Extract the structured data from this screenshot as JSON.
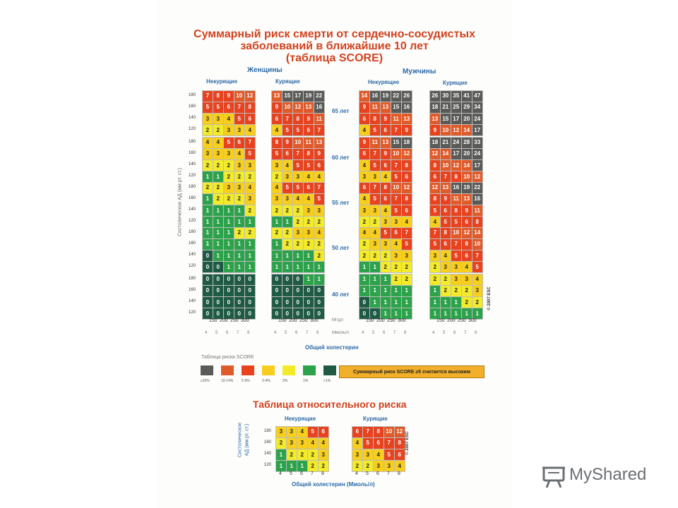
{
  "header": {
    "line1": "Суммарный риск смерти от сердечно-сосудистых",
    "line2": "заболеваний в ближайшие 10 лет",
    "line3": "(таблица SCORE)"
  },
  "sex_labels": {
    "women": "Женщины",
    "men": "Мужчины"
  },
  "smoke_labels": {
    "w_non": "Некурящие",
    "w_smk": "Курящие",
    "m_non": "Некурящие",
    "m_smk": "Курящие"
  },
  "bp_values": [
    "180",
    "160",
    "140",
    "120"
  ],
  "y_axis_label": "Систолическое АД (мм рт. ст.)",
  "chol_mg": [
    "150",
    "200",
    "250",
    "300"
  ],
  "chol_mmol": [
    "4",
    "5",
    "6",
    "7",
    "8"
  ],
  "unit_mg": "Мг/дл",
  "unit_mmol": "Ммоль/л",
  "x_axis_label": "Общий холестерин",
  "copyright": "© 2007 ESC",
  "legend_title": "Таблица риска SCORE",
  "legend": [
    {
      "color": "#5a5a58",
      "label": "≥15%"
    },
    {
      "color": "#e05a2a",
      "label": "10-14%"
    },
    {
      "color": "#e8421f",
      "label": "5-9%"
    },
    {
      "color": "#f7ce1c",
      "label": "3-4%"
    },
    {
      "color": "#f3ea2a",
      "label": "2%"
    },
    {
      "color": "#2ca24a",
      "label": "1%"
    },
    {
      "color": "#1e5a44",
      "label": "<1%"
    }
  ],
  "legend_note": "Суммарный риск SCORE ≥5 считается высоким",
  "rel_title": "Таблица относительного риска",
  "rel_labels": {
    "non": "Некурящие",
    "smk": "Курящие"
  },
  "rel_y_label_1": "Систолическое",
  "rel_y_label_2": "АД (мм рт. ст.)",
  "rel_x_label": "Общий холестерин (Ммоль/л)",
  "brand": {
    "name": "MyShared"
  },
  "chart_data": {
    "type": "heatmap",
    "title": "Суммарный риск смерти от сердечно-сосудистых заболеваний в ближайшие 10 лет (таблица SCORE)",
    "rows": [
      "180",
      "160",
      "140",
      "120"
    ],
    "columns_mmol": [
      "4",
      "5",
      "6",
      "7",
      "8"
    ],
    "ages": [
      "65 лет",
      "60 лет",
      "55 лет",
      "50 лет",
      "40 лет"
    ],
    "groups": [
      "women_nonsmoker",
      "women_smoker",
      "men_nonsmoker",
      "men_smoker"
    ],
    "score": {
      "women_nonsmoker": [
        [
          [
            7,
            8,
            9,
            10,
            12
          ],
          [
            5,
            5,
            6,
            7,
            8
          ],
          [
            3,
            3,
            4,
            5,
            6
          ],
          [
            2,
            2,
            3,
            3,
            4
          ]
        ],
        [
          [
            4,
            4,
            5,
            6,
            7
          ],
          [
            3,
            3,
            3,
            4,
            5
          ],
          [
            2,
            2,
            2,
            3,
            3
          ],
          [
            1,
            1,
            2,
            2,
            2
          ]
        ],
        [
          [
            2,
            2,
            3,
            3,
            4
          ],
          [
            1,
            2,
            2,
            2,
            3
          ],
          [
            1,
            1,
            1,
            1,
            2
          ],
          [
            1,
            1,
            1,
            1,
            1
          ]
        ],
        [
          [
            1,
            1,
            1,
            2,
            2
          ],
          [
            1,
            1,
            1,
            1,
            1
          ],
          [
            0,
            1,
            1,
            1,
            1
          ],
          [
            0,
            0,
            1,
            1,
            1
          ]
        ],
        [
          [
            0,
            0,
            0,
            0,
            0
          ],
          [
            0,
            0,
            0,
            0,
            0
          ],
          [
            0,
            0,
            0,
            0,
            0
          ],
          [
            0,
            0,
            0,
            0,
            0
          ]
        ]
      ],
      "women_smoker": [
        [
          [
            13,
            15,
            17,
            19,
            22
          ],
          [
            9,
            10,
            12,
            13,
            16
          ],
          [
            6,
            7,
            8,
            9,
            11
          ],
          [
            4,
            5,
            5,
            6,
            7
          ]
        ],
        [
          [
            8,
            9,
            10,
            11,
            13
          ],
          [
            5,
            6,
            7,
            8,
            9
          ],
          [
            3,
            4,
            5,
            5,
            6
          ],
          [
            2,
            3,
            3,
            4,
            4
          ]
        ],
        [
          [
            4,
            5,
            5,
            6,
            7
          ],
          [
            3,
            3,
            4,
            4,
            5
          ],
          [
            2,
            2,
            2,
            3,
            3
          ],
          [
            1,
            1,
            2,
            2,
            2
          ]
        ],
        [
          [
            2,
            2,
            3,
            3,
            4
          ],
          [
            1,
            2,
            2,
            2,
            2
          ],
          [
            1,
            1,
            1,
            1,
            2
          ],
          [
            1,
            1,
            1,
            1,
            1
          ]
        ],
        [
          [
            0,
            0,
            0,
            1,
            1
          ],
          [
            0,
            0,
            0,
            0,
            0
          ],
          [
            0,
            0,
            0,
            0,
            0
          ],
          [
            0,
            0,
            0,
            0,
            0
          ]
        ]
      ],
      "men_nonsmoker": [
        [
          [
            14,
            16,
            19,
            22,
            26
          ],
          [
            9,
            11,
            13,
            15,
            16
          ],
          [
            6,
            8,
            9,
            11,
            13
          ],
          [
            4,
            5,
            6,
            7,
            9
          ]
        ],
        [
          [
            9,
            11,
            13,
            15,
            18
          ],
          [
            6,
            7,
            9,
            10,
            12
          ],
          [
            4,
            5,
            6,
            7,
            8
          ],
          [
            3,
            3,
            4,
            5,
            6
          ]
        ],
        [
          [
            6,
            7,
            8,
            10,
            12
          ],
          [
            4,
            5,
            6,
            7,
            8
          ],
          [
            3,
            3,
            4,
            5,
            6
          ],
          [
            2,
            2,
            3,
            3,
            4
          ]
        ],
        [
          [
            4,
            4,
            5,
            6,
            7
          ],
          [
            2,
            3,
            3,
            4,
            5
          ],
          [
            2,
            2,
            2,
            3,
            3
          ],
          [
            1,
            1,
            2,
            2,
            2
          ]
        ],
        [
          [
            1,
            1,
            1,
            2,
            2
          ],
          [
            1,
            1,
            1,
            1,
            1
          ],
          [
            0,
            1,
            1,
            1,
            1
          ],
          [
            0,
            0,
            1,
            1,
            1
          ]
        ]
      ],
      "men_smoker": [
        [
          [
            26,
            30,
            35,
            41,
            47
          ],
          [
            18,
            21,
            25,
            29,
            34
          ],
          [
            13,
            15,
            17,
            20,
            24
          ],
          [
            9,
            10,
            12,
            14,
            17
          ]
        ],
        [
          [
            18,
            21,
            24,
            28,
            33
          ],
          [
            12,
            14,
            17,
            20,
            24
          ],
          [
            8,
            10,
            12,
            14,
            17
          ],
          [
            6,
            7,
            8,
            10,
            12
          ]
        ],
        [
          [
            12,
            13,
            16,
            19,
            22
          ],
          [
            8,
            9,
            11,
            13,
            16
          ],
          [
            5,
            6,
            8,
            9,
            11
          ],
          [
            4,
            5,
            5,
            6,
            8
          ]
        ],
        [
          [
            7,
            8,
            10,
            12,
            14
          ],
          [
            5,
            6,
            7,
            8,
            10
          ],
          [
            3,
            4,
            5,
            6,
            7
          ],
          [
            2,
            3,
            3,
            4,
            5
          ]
        ],
        [
          [
            2,
            2,
            3,
            3,
            4
          ],
          [
            1,
            2,
            2,
            2,
            3
          ],
          [
            1,
            1,
            1,
            2,
            2
          ],
          [
            1,
            1,
            1,
            1,
            1
          ]
        ]
      ]
    },
    "relative_risk": {
      "nonsmoker": [
        [
          3,
          3,
          4,
          5,
          6
        ],
        [
          2,
          3,
          3,
          4,
          4
        ],
        [
          1,
          2,
          2,
          2,
          3
        ],
        [
          1,
          1,
          1,
          2,
          2
        ]
      ],
      "smoker": [
        [
          6,
          7,
          8,
          10,
          12
        ],
        [
          4,
          5,
          6,
          7,
          8
        ],
        [
          3,
          3,
          4,
          5,
          6
        ],
        [
          2,
          2,
          3,
          3,
          4
        ]
      ]
    }
  }
}
